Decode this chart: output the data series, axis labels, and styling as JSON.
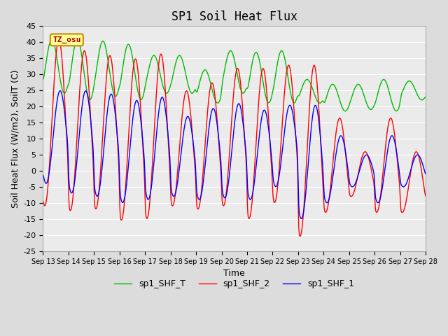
{
  "title": "SP1 Soil Heat Flux",
  "xlabel": "Time",
  "ylabel": "Soil Heat Flux (W/m2), SoilT (C)",
  "ylim": [
    -25,
    45
  ],
  "ytick_values": [
    -25,
    -20,
    -15,
    -10,
    -5,
    0,
    5,
    10,
    15,
    20,
    25,
    30,
    35,
    40,
    45
  ],
  "xtick_labels": [
    "Sep 13",
    "Sep 14",
    "Sep 15",
    "Sep 16",
    "Sep 17",
    "Sep 18",
    "Sep 19",
    "Sep 20",
    "Sep 21",
    "Sep 22",
    "Sep 23",
    "Sep 24",
    "Sep 25",
    "Sep 26",
    "Sep 27",
    "Sep 28"
  ],
  "color_shf2": "#FF0000",
  "color_shf1": "#0000FF",
  "color_shfT": "#00BB00",
  "legend_labels": [
    "sp1_SHF_2",
    "sp1_SHF_1",
    "sp1_SHF_T"
  ],
  "watermark_text": "TZ_osu",
  "watermark_color": "#AA0000",
  "watermark_bg": "#FFFF99",
  "watermark_border": "#CC8800",
  "bg_color": "#DCDCDC",
  "plot_bg_color": "#EBEBEB",
  "title_fontsize": 12,
  "axis_label_fontsize": 9,
  "tick_fontsize": 8,
  "legend_fontsize": 9,
  "shf2_peaks": [
    41,
    37.5,
    36,
    35,
    36.5,
    25,
    27.5,
    32,
    32,
    33,
    33,
    16.5,
    6,
    16.5,
    6
  ],
  "shf2_troughs": [
    -11,
    -12.5,
    -12,
    -15.5,
    -15,
    -11,
    -12,
    -11,
    -15,
    -10,
    -20.5,
    -13,
    -8,
    -13,
    -13
  ],
  "shf1_peaks": [
    25,
    25,
    24,
    22,
    23,
    17,
    19.5,
    21,
    19,
    20.5,
    20.5,
    11,
    5,
    11,
    5
  ],
  "shf1_troughs": [
    -4,
    -7,
    -8,
    -10,
    -9,
    -8,
    -9,
    -8.5,
    -9,
    -5,
    -15,
    -10,
    -5,
    -10,
    -5
  ],
  "shfT_peaks": [
    41,
    41,
    40.5,
    39.5,
    36,
    36,
    31.5,
    37.5,
    37,
    37.5,
    28.5,
    27,
    27,
    28.5,
    28
  ],
  "shfT_troughs": [
    24,
    22,
    23,
    22,
    24,
    24,
    21,
    24,
    21,
    21,
    21,
    18.5,
    19,
    18.5,
    22
  ]
}
